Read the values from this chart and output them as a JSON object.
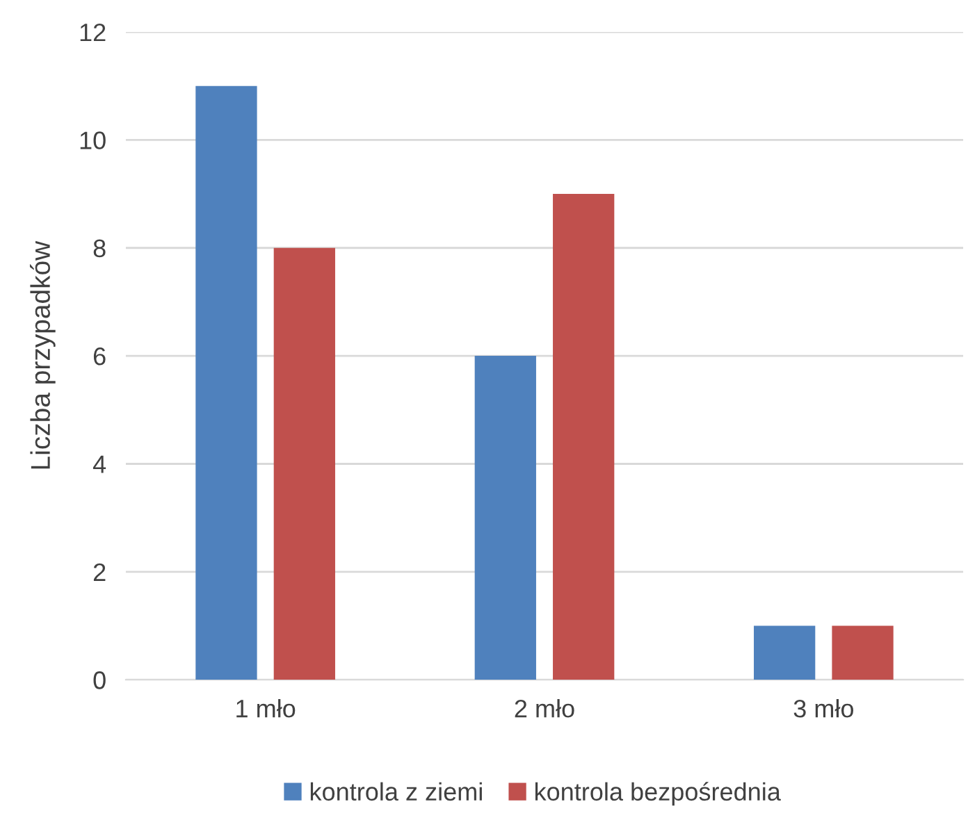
{
  "chart_data": {
    "type": "bar",
    "ylabel": "Liczba przypadków",
    "categories": [
      "1 mło",
      "2 mło",
      "3 mło"
    ],
    "series": [
      {
        "name": "kontrola z ziemi",
        "color": "#4f81bd",
        "values": [
          11,
          6,
          1
        ]
      },
      {
        "name": "kontrola bezpośrednia",
        "color": "#c0504d",
        "values": [
          8,
          9,
          1
        ]
      }
    ],
    "ylim": [
      0,
      12
    ],
    "yticks": [
      0,
      2,
      4,
      6,
      8,
      10,
      12
    ],
    "grid": "y",
    "legend": "bottom"
  }
}
